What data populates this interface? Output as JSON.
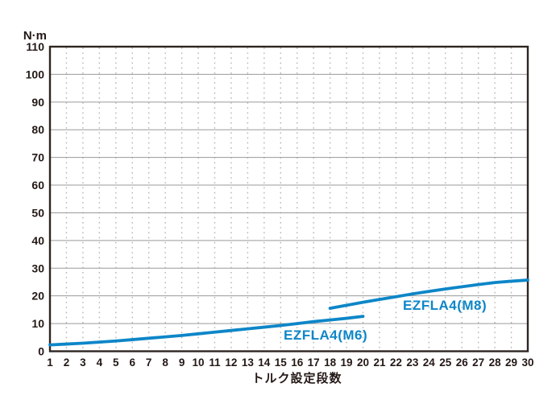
{
  "colors": {
    "background": "#ffffff",
    "plot_border": "#2e2522",
    "grid_horizontal": "#9a9a9a",
    "grid_vertical": "#b3b3b3",
    "axis_text": "#231815",
    "series_blue": "#0d86c8"
  },
  "chart_data": {
    "type": "line",
    "y_unit_label": "N·m",
    "xlabel": "トルク設定段数",
    "xlim": [
      1,
      30
    ],
    "ylim": [
      0,
      110
    ],
    "x_ticks": [
      1,
      2,
      3,
      4,
      5,
      6,
      7,
      8,
      9,
      10,
      11,
      12,
      13,
      14,
      15,
      16,
      17,
      18,
      19,
      20,
      21,
      22,
      23,
      24,
      25,
      26,
      27,
      28,
      29,
      30
    ],
    "y_ticks": [
      0,
      10,
      20,
      30,
      40,
      50,
      60,
      70,
      80,
      90,
      100,
      110
    ],
    "grid": {
      "horizontal": "solid",
      "vertical": "dotted"
    },
    "legend_position": "inline-annotations",
    "series": [
      {
        "name": "EZFLA4(M6)",
        "color": "#0d86c8",
        "x": [
          1,
          2,
          3,
          4,
          5,
          6,
          7,
          8,
          9,
          10,
          11,
          12,
          13,
          14,
          15,
          16,
          17,
          18,
          19,
          20
        ],
        "values": [
          2.3,
          2.6,
          2.9,
          3.3,
          3.7,
          4.2,
          4.7,
          5.2,
          5.7,
          6.3,
          6.9,
          7.5,
          8.1,
          8.7,
          9.3,
          10.0,
          10.7,
          11.3,
          11.9,
          12.6
        ]
      },
      {
        "name": "EZFLA4(M8)",
        "color": "#0d86c8",
        "x": [
          18,
          19,
          20,
          21,
          22,
          23,
          24,
          25,
          26,
          27,
          28,
          29,
          30
        ],
        "values": [
          15.5,
          16.6,
          17.7,
          18.7,
          19.7,
          20.7,
          21.6,
          22.5,
          23.3,
          24.1,
          24.8,
          25.3,
          25.7
        ]
      }
    ]
  }
}
